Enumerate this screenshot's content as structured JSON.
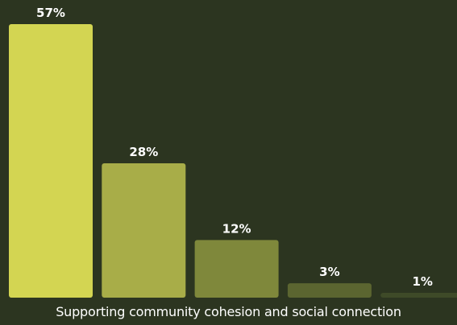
{
  "chart_data": {
    "type": "bar",
    "values": [
      57,
      28,
      12,
      3,
      1
    ],
    "labels": [
      "57%",
      "28%",
      "12%",
      "3%",
      "1%"
    ],
    "ylim": [
      0,
      57
    ],
    "bar_colors": [
      "#d3d552",
      "#a8ad48",
      "#7f883b",
      "#5b6530",
      "#3e4a28"
    ]
  },
  "caption": "Supporting community cohesion and social connection",
  "colors": {
    "background": "#2c3520",
    "label": "#ffffff"
  }
}
